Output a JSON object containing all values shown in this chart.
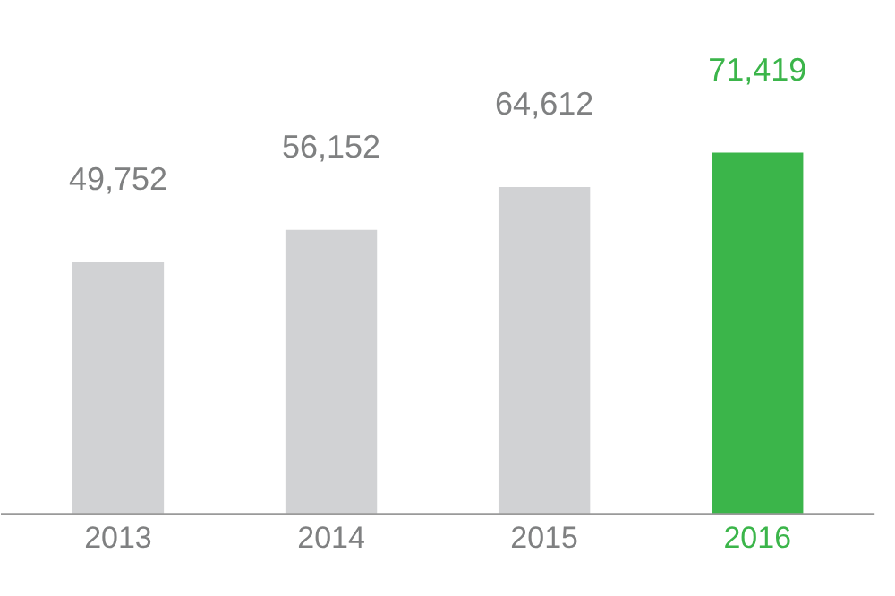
{
  "chart_data": {
    "type": "bar",
    "categories": [
      "2013",
      "2014",
      "2015",
      "2016"
    ],
    "values": [
      49752,
      56152,
      64612,
      71419
    ],
    "colors": [
      "#d1d2d4",
      "#d1d2d4",
      "#d1d2d4",
      "#3bb54a"
    ],
    "value_labels": [
      "49,752",
      "56,152",
      "64,612",
      "71,419"
    ]
  }
}
